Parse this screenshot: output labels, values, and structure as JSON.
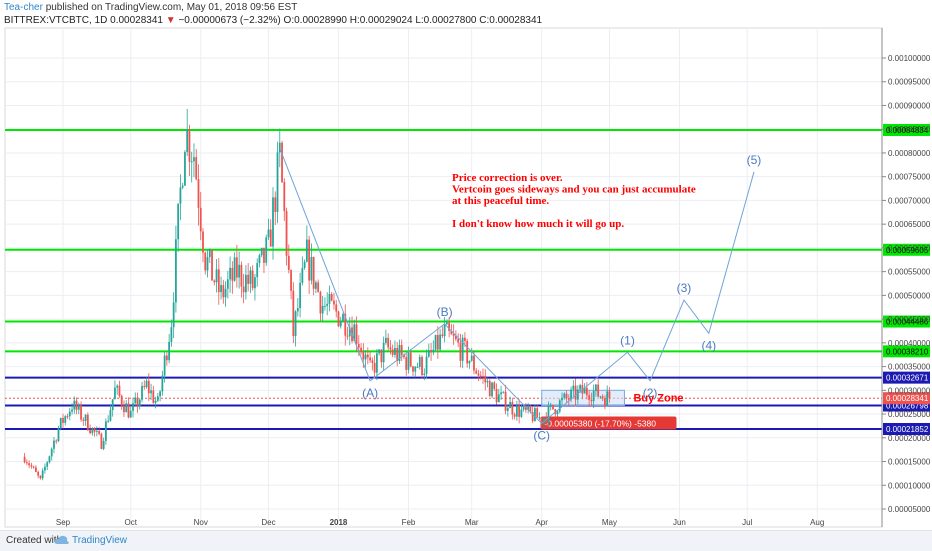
{
  "header": {
    "author": "Tea-cher",
    "published": "published on TradingView.com, May 01, 2018 09:56 EST",
    "symbol": "BITTREX:VTCBTC, 1D",
    "last": "0.00028341",
    "change": "−0.00000673 (−2.32%)",
    "ohlc": "O:0.00028990 H:0.00029024 L:0.00027800 C:0.00028341"
  },
  "footer": {
    "created": "Created with",
    "brand": "TradingView"
  },
  "colors": {
    "up": "#26a69a",
    "down": "#ef5350",
    "green_level": "#00e600",
    "blue_level": "#1b1bb3",
    "wave": "#6fa3d8",
    "annotation": "#ff0000"
  },
  "chart_data": {
    "type": "candlestick",
    "ylim": [
      5e-05,
      0.001
    ],
    "y_ticks": [
      "0.00005000",
      "0.00010000",
      "0.00015000",
      "0.00020000",
      "0.00025000",
      "0.00030000",
      "0.00035000",
      "0.00040000",
      "0.00045000",
      "0.00050000",
      "0.00055000",
      "0.00060000",
      "0.00065000",
      "0.00070000",
      "0.00075000",
      "0.00080000",
      "0.00085000",
      "0.00090000",
      "0.00095000",
      "0.00100000"
    ],
    "x_ticks": [
      "Sep",
      "Oct",
      "Nov",
      "Dec",
      "2018",
      "Feb",
      "Mar",
      "Apr",
      "May",
      "Jun",
      "Jul",
      "Aug"
    ],
    "grid": true,
    "green_levels": [
      {
        "value": 0.00084834,
        "label": "0.00084834"
      },
      {
        "value": 0.00059605,
        "label": "0.00059605"
      },
      {
        "value": 0.00044486,
        "label": "0.00044486"
      },
      {
        "value": 0.0003821,
        "label": "0.00038210"
      }
    ],
    "blue_levels": [
      {
        "value": 0.00032671,
        "label": "0.00032671"
      },
      {
        "value": 0.00026798,
        "label": "0.00026798"
      },
      {
        "value": 0.00021852,
        "label": "0.00021852"
      }
    ],
    "last_price": {
      "value": 0.00028341,
      "label": "0.00028341"
    },
    "wave_points": [
      {
        "date": "2017-12-06",
        "value": 0.00081
      },
      {
        "date": "2018-01-15",
        "value": 0.00032,
        "label": "(A)"
      },
      {
        "date": "2018-02-17",
        "value": 0.00044,
        "label": "(B)"
      },
      {
        "date": "2018-04-01",
        "value": 0.00023,
        "label": "(C)"
      },
      {
        "date": "2018-05-09",
        "value": 0.00038,
        "label": "(1)"
      },
      {
        "date": "2018-05-19",
        "value": 0.00032,
        "label": "(2)"
      },
      {
        "date": "2018-06-03",
        "value": 0.00049,
        "label": "(3)"
      },
      {
        "date": "2018-06-14",
        "value": 0.00042,
        "label": "(4)"
      },
      {
        "date": "2018-07-04",
        "value": 0.00076,
        "label": "(5)"
      }
    ],
    "buy_zone": {
      "label": "Buy Zone",
      "date_from": "2018-04-01",
      "date_to": "2018-05-01",
      "low": 0.00026798,
      "high": 0.0003
    },
    "measure_label": "-0.00005380 (-17.70%) -5380",
    "annotation_lines": [
      "Price correction is over.",
      "Vertcoin goes sideways and you can just accumulate",
      "at this peaceful time.",
      "",
      "I don't know how much it will go up."
    ],
    "price_path": [
      {
        "date": "2017-08-15",
        "value": 0.00016
      },
      {
        "date": "2017-08-22",
        "value": 0.00011
      },
      {
        "date": "2017-08-30",
        "value": 0.00022
      },
      {
        "date": "2017-09-05",
        "value": 0.00027
      },
      {
        "date": "2017-09-12",
        "value": 0.00023
      },
      {
        "date": "2017-09-18",
        "value": 0.00019
      },
      {
        "date": "2017-09-24",
        "value": 0.0003
      },
      {
        "date": "2017-10-01",
        "value": 0.00025
      },
      {
        "date": "2017-10-08",
        "value": 0.00031
      },
      {
        "date": "2017-10-13",
        "value": 0.00027
      },
      {
        "date": "2017-10-19",
        "value": 0.00045
      },
      {
        "date": "2017-10-25",
        "value": 0.00085
      },
      {
        "date": "2017-10-29",
        "value": 0.0008
      },
      {
        "date": "2017-11-03",
        "value": 0.00058
      },
      {
        "date": "2017-11-10",
        "value": 0.0005
      },
      {
        "date": "2017-11-17",
        "value": 0.00055
      },
      {
        "date": "2017-11-24",
        "value": 0.00052
      },
      {
        "date": "2017-12-01",
        "value": 0.0006
      },
      {
        "date": "2017-12-06",
        "value": 0.00079
      },
      {
        "date": "2017-12-12",
        "value": 0.00042
      },
      {
        "date": "2017-12-18",
        "value": 0.00058
      },
      {
        "date": "2017-12-25",
        "value": 0.00048
      },
      {
        "date": "2018-01-01",
        "value": 0.00046
      },
      {
        "date": "2018-01-08",
        "value": 0.00043
      },
      {
        "date": "2018-01-15",
        "value": 0.00034
      },
      {
        "date": "2018-01-22",
        "value": 0.00039
      },
      {
        "date": "2018-02-01",
        "value": 0.00036
      },
      {
        "date": "2018-02-08",
        "value": 0.00035
      },
      {
        "date": "2018-02-17",
        "value": 0.00042
      },
      {
        "date": "2018-02-26",
        "value": 0.00038
      },
      {
        "date": "2018-03-05",
        "value": 0.00033
      },
      {
        "date": "2018-03-12",
        "value": 0.00029
      },
      {
        "date": "2018-03-20",
        "value": 0.00026
      },
      {
        "date": "2018-03-26",
        "value": 0.00025
      },
      {
        "date": "2018-04-01",
        "value": 0.00024
      },
      {
        "date": "2018-04-08",
        "value": 0.00027
      },
      {
        "date": "2018-04-15",
        "value": 0.00029
      },
      {
        "date": "2018-04-22",
        "value": 0.0003
      },
      {
        "date": "2018-05-01",
        "value": 0.00028341
      }
    ]
  }
}
